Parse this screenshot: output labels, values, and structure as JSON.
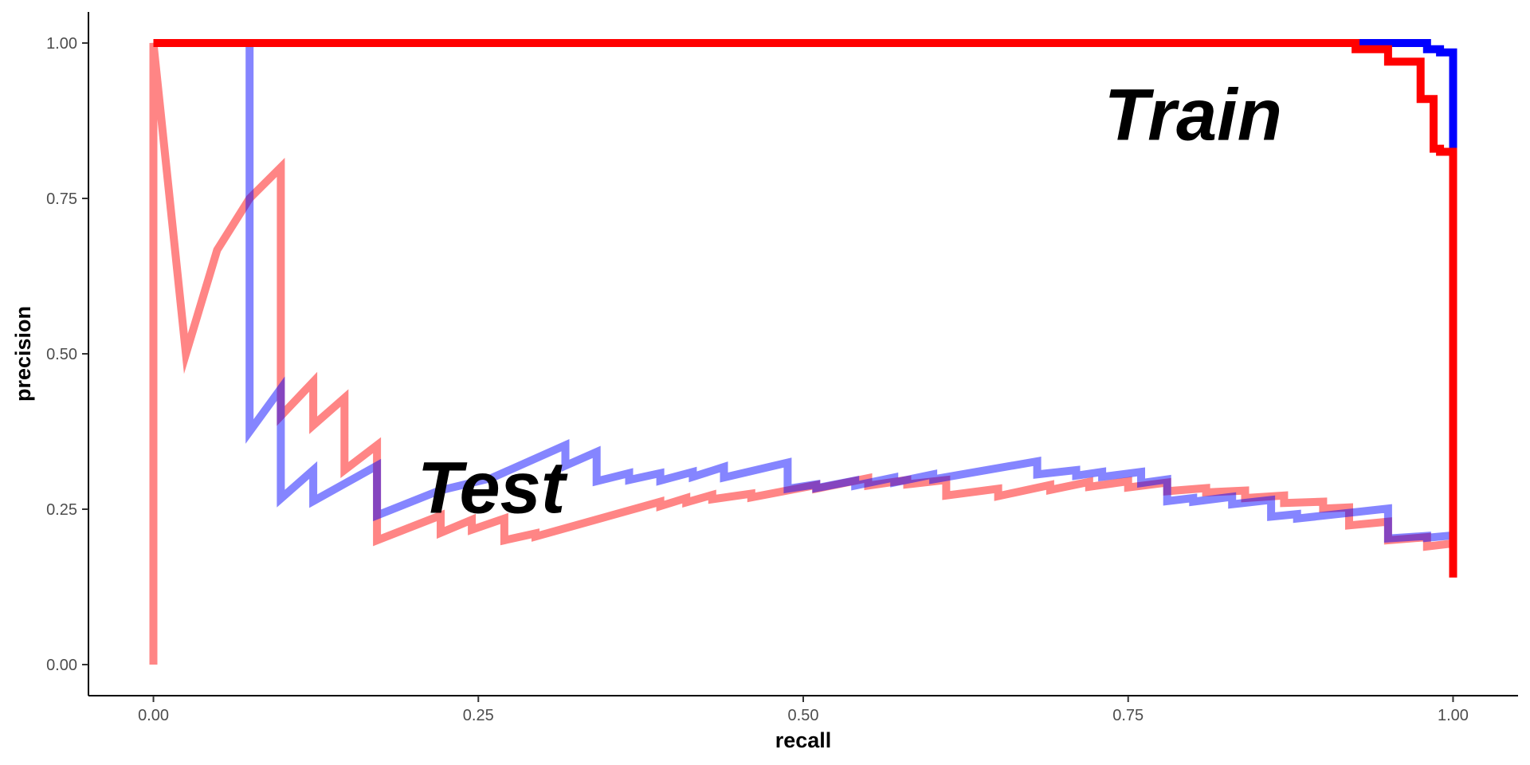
{
  "chart_data": {
    "type": "line",
    "title": "",
    "xlabel": "recall",
    "ylabel": "precision",
    "xlim": [
      -0.05,
      1.05
    ],
    "ylim": [
      -0.05,
      1.05
    ],
    "x_ticks": [
      0.0,
      0.25,
      0.5,
      0.75,
      1.0
    ],
    "x_tick_labels": [
      "0.00",
      "0.25",
      "0.50",
      "0.75",
      "1.00"
    ],
    "y_ticks": [
      0.0,
      0.25,
      0.5,
      0.75,
      1.0
    ],
    "y_tick_labels": [
      "0.00",
      "0.25",
      "0.50",
      "0.75",
      "1.00"
    ],
    "grid": false,
    "legend": "none",
    "annotations": [
      {
        "text": "Train",
        "x": 0.8,
        "y": 0.885
      },
      {
        "text": "Test",
        "x": 0.26,
        "y": 0.285
      }
    ],
    "series": [
      {
        "color": "#ff0000",
        "opacity": 0.48,
        "x": [
          0.0,
          0.0,
          0.0,
          0.025,
          0.049,
          0.074,
          0.098,
          0.098,
          0.123,
          0.123,
          0.147,
          0.147,
          0.172,
          0.172,
          0.221,
          0.221,
          0.245,
          0.245,
          0.27,
          0.27,
          0.294,
          0.294,
          0.39,
          0.39,
          0.41,
          0.41,
          0.43,
          0.43,
          0.46,
          0.46,
          0.51,
          0.51,
          0.55,
          0.55,
          0.58,
          0.58,
          0.61,
          0.61,
          0.65,
          0.65,
          0.69,
          0.69,
          0.72,
          0.72,
          0.75,
          0.75,
          0.78,
          0.78,
          0.81,
          0.81,
          0.84,
          0.84,
          0.87,
          0.87,
          0.9,
          0.9,
          0.92,
          0.92,
          0.95,
          0.95,
          0.98,
          0.98,
          1.0
        ],
        "y": [
          1.0,
          0.0,
          1.0,
          0.5,
          0.667,
          0.75,
          0.8,
          0.4,
          0.455,
          0.385,
          0.429,
          0.313,
          0.353,
          0.2,
          0.24,
          0.212,
          0.233,
          0.217,
          0.235,
          0.2,
          0.211,
          0.206,
          0.262,
          0.255,
          0.268,
          0.261,
          0.273,
          0.266,
          0.275,
          0.269,
          0.289,
          0.283,
          0.3,
          0.288,
          0.297,
          0.29,
          0.297,
          0.272,
          0.283,
          0.271,
          0.289,
          0.281,
          0.294,
          0.286,
          0.295,
          0.285,
          0.293,
          0.279,
          0.284,
          0.277,
          0.28,
          0.268,
          0.272,
          0.26,
          0.262,
          0.251,
          0.253,
          0.224,
          0.23,
          0.2,
          0.205,
          0.19,
          0.195
        ]
      },
      {
        "color": "#0000ff",
        "opacity": 0.48,
        "x": [
          0.074,
          0.074,
          0.098,
          0.098,
          0.123,
          0.123,
          0.172,
          0.172,
          0.22,
          0.26,
          0.317,
          0.317,
          0.341,
          0.341,
          0.366,
          0.366,
          0.39,
          0.39,
          0.415,
          0.415,
          0.439,
          0.439,
          0.488,
          0.488,
          0.51,
          0.51,
          0.54,
          0.54,
          0.57,
          0.57,
          0.6,
          0.6,
          0.68,
          0.68,
          0.71,
          0.71,
          0.73,
          0.73,
          0.76,
          0.76,
          0.78,
          0.78,
          0.8,
          0.8,
          0.83,
          0.83,
          0.86,
          0.86,
          0.88,
          0.88,
          0.95,
          0.95,
          0.98,
          0.98,
          1.0
        ],
        "y": [
          1.0,
          0.375,
          0.444,
          0.267,
          0.313,
          0.263,
          0.32,
          0.24,
          0.28,
          0.3,
          0.353,
          0.32,
          0.342,
          0.295,
          0.308,
          0.297,
          0.308,
          0.296,
          0.31,
          0.302,
          0.318,
          0.301,
          0.325,
          0.283,
          0.29,
          0.284,
          0.296,
          0.288,
          0.301,
          0.293,
          0.306,
          0.298,
          0.327,
          0.306,
          0.313,
          0.304,
          0.31,
          0.302,
          0.31,
          0.292,
          0.298,
          0.263,
          0.268,
          0.262,
          0.27,
          0.258,
          0.265,
          0.238,
          0.242,
          0.235,
          0.251,
          0.203,
          0.207,
          0.204,
          0.208
        ]
      },
      {
        "color": "#0000ff",
        "opacity": 1.0,
        "x": [
          0.0,
          0.96,
          0.97,
          0.97,
          0.98,
          0.98,
          0.99,
          0.99,
          1.0,
          1.0
        ],
        "y": [
          1.0,
          1.0,
          1.0,
          1.0,
          1.0,
          0.99,
          0.99,
          0.985,
          0.985,
          0.83
        ]
      },
      {
        "color": "#ff0000",
        "opacity": 1.0,
        "x": [
          0.0,
          0.925,
          0.925,
          0.95,
          0.95,
          0.975,
          0.975,
          0.985,
          0.985,
          0.99,
          0.99,
          1.0,
          1.0
        ],
        "y": [
          1.0,
          1.0,
          0.99,
          0.99,
          0.97,
          0.97,
          0.91,
          0.91,
          0.83,
          0.83,
          0.825,
          0.825,
          0.14
        ]
      }
    ]
  }
}
